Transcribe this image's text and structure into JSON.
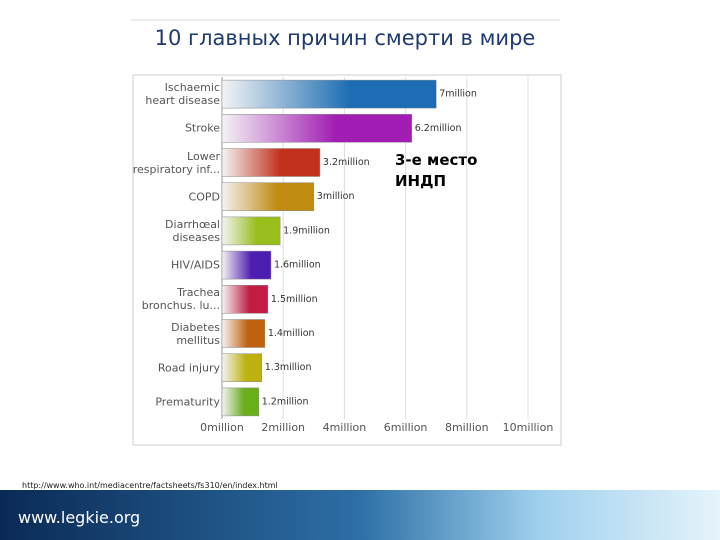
{
  "title": "10 главных причин смерти  в мире",
  "chart_data": {
    "type": "bar",
    "orientation": "horizontal",
    "categories": [
      "Ischaemic\nheart disease",
      "Stroke",
      "Lower\nrespiratory inf...",
      "COPD",
      "Diarrhœal\ndiseases",
      "HIV/AIDS",
      "Trachea\nbronchus. lu...",
      "Diabetes\nmellitus",
      "Road injury",
      "Prematurity"
    ],
    "values": [
      7,
      6.2,
      3.2,
      3,
      1.9,
      1.6,
      1.5,
      1.4,
      1.3,
      1.2
    ],
    "value_labels": [
      "7million",
      "6.2million",
      "3.2million",
      "3million",
      "1.9million",
      "1.6million",
      "1.5million",
      "1.4million",
      "1.3million",
      "1.2million"
    ],
    "colors": [
      "#1c6db3",
      "#a11db3",
      "#c2311c",
      "#c08c12",
      "#98bf1c",
      "#4d1cb0",
      "#c21c45",
      "#c0610f",
      "#bdb20f",
      "#6aae1c"
    ],
    "xlim": [
      0,
      10
    ],
    "xticks": [
      {
        "value": 0,
        "label": "0million"
      },
      {
        "value": 2,
        "label": "2million"
      },
      {
        "value": 4,
        "label": "4million"
      },
      {
        "value": 6,
        "label": "6million"
      },
      {
        "value": 8,
        "label": "8million"
      },
      {
        "value": 10,
        "label": "10million"
      }
    ],
    "grid": true
  },
  "annotation": [
    "3-е место",
    "ИНДП"
  ],
  "source": "http://www.who.int/mediacentre/factsheets/fs310/en/index.html",
  "footer": "www.legkie.org"
}
